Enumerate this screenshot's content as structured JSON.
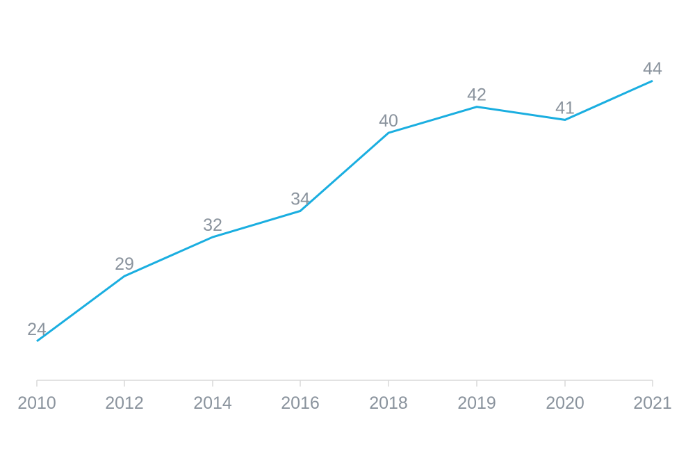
{
  "chart_data": {
    "type": "line",
    "categories": [
      "2010",
      "2012",
      "2014",
      "2016",
      "2018",
      "2019",
      "2020",
      "2021"
    ],
    "values": [
      24,
      29,
      32,
      34,
      40,
      42,
      41,
      44
    ],
    "data_labels": [
      "24",
      "29",
      "32",
      "34",
      "40",
      "42",
      "41",
      "44"
    ],
    "title": "",
    "xlabel": "",
    "ylabel": "",
    "ylim": [
      21,
      47
    ],
    "grid": false,
    "legend": "none",
    "colors": {
      "line": "#1aaee0",
      "text": "#8a939d",
      "axis": "#d9d9d9"
    }
  }
}
